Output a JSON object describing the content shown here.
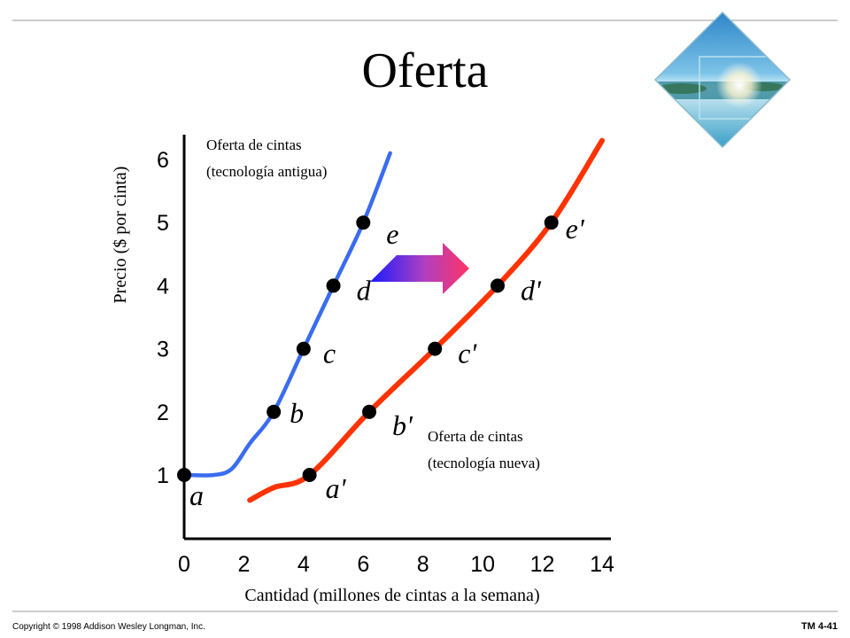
{
  "slide": {
    "title": "Oferta",
    "footer_left": "Copyright © 1998 Addison Wesley Longman, Inc.",
    "footer_right": "TM 4-41",
    "line_color": "#999999",
    "logo": "diamond-ocean-photo-logo"
  },
  "chart_data": {
    "type": "line",
    "title": "Oferta",
    "xlabel": "Cantidad (millones de cintas a la semana)",
    "ylabel": "Precio ($ por cinta)",
    "xlim": [
      0,
      14
    ],
    "ylim": [
      0.4,
      6.5
    ],
    "x_ticks": [
      "0",
      "2",
      "4",
      "6",
      "8",
      "10",
      "12",
      "14"
    ],
    "y_ticks": [
      "1",
      "2",
      "3",
      "4",
      "5",
      "6"
    ],
    "series": [
      {
        "name_lines": [
          "Oferta de cintas",
          "(tecnología antigua)"
        ],
        "color": "#3a6cf0",
        "points": [
          {
            "label": "a",
            "x": 0,
            "y": 1.0
          },
          {
            "label": "b",
            "x": 3,
            "y": 2.0
          },
          {
            "label": "c",
            "x": 4,
            "y": 3.0
          },
          {
            "label": "d",
            "x": 5,
            "y": 4.0
          },
          {
            "label": "e",
            "x": 6,
            "y": 5.0
          }
        ],
        "curve": [
          [
            0,
            1.0
          ],
          [
            1.0,
            1.0
          ],
          [
            1.6,
            1.1
          ],
          [
            2.2,
            1.5
          ],
          [
            3,
            2.0
          ],
          [
            4,
            3.0
          ],
          [
            5,
            4.0
          ],
          [
            6,
            5.0
          ],
          [
            6.9,
            6.1
          ]
        ]
      },
      {
        "name_lines": [
          "Oferta de cintas",
          "(tecnología nueva)"
        ],
        "color": "#ff3300",
        "points": [
          {
            "label": "a'",
            "x": 4.2,
            "y": 1.0
          },
          {
            "label": "b'",
            "x": 6.2,
            "y": 2.0
          },
          {
            "label": "c'",
            "x": 8.4,
            "y": 3.0
          },
          {
            "label": "d'",
            "x": 10.5,
            "y": 4.0
          },
          {
            "label": "e'",
            "x": 12.3,
            "y": 5.0
          }
        ],
        "curve": [
          [
            2.2,
            0.6
          ],
          [
            3.0,
            0.8
          ],
          [
            4.2,
            1.0
          ],
          [
            6.2,
            2.0
          ],
          [
            8.4,
            3.0
          ],
          [
            10.5,
            4.0
          ],
          [
            12.3,
            5.0
          ],
          [
            14.0,
            6.3
          ]
        ]
      }
    ],
    "annotation": "shift-right-arrow",
    "grid": false
  }
}
